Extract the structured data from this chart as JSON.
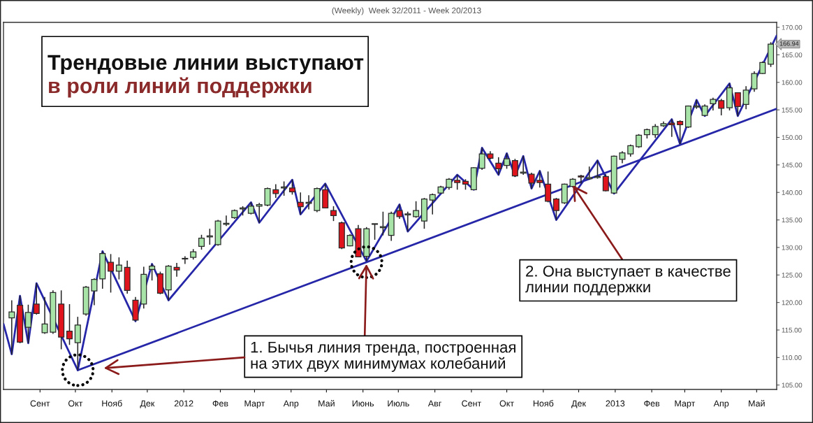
{
  "chart_data": {
    "type": "candlestick",
    "title": "(Weekly)  Week 32/2011 - Week 20/2013",
    "x": [
      "2011-08-08",
      "2011-08-15",
      "2011-08-22",
      "2011-08-29",
      "2011-09-05",
      "2011-09-12",
      "2011-09-19",
      "2011-09-26",
      "2011-10-03",
      "2011-10-10",
      "2011-10-17",
      "2011-10-24",
      "2011-10-31",
      "2011-11-07",
      "2011-11-14",
      "2011-11-21",
      "2011-11-28",
      "2011-12-05",
      "2011-12-12",
      "2011-12-19",
      "2011-12-26",
      "2012-01-02",
      "2012-01-09",
      "2012-01-16",
      "2012-01-23",
      "2012-01-30",
      "2012-02-06",
      "2012-02-13",
      "2012-02-20",
      "2012-02-27",
      "2012-03-05",
      "2012-03-12",
      "2012-03-19",
      "2012-03-26",
      "2012-04-02",
      "2012-04-09",
      "2012-04-16",
      "2012-04-23",
      "2012-04-30",
      "2012-05-07",
      "2012-05-14",
      "2012-05-21",
      "2012-05-28",
      "2012-06-04",
      "2012-06-11",
      "2012-06-18",
      "2012-06-25",
      "2012-07-02",
      "2012-07-09",
      "2012-07-16",
      "2012-07-23",
      "2012-07-30",
      "2012-08-06",
      "2012-08-13",
      "2012-08-20",
      "2012-08-27",
      "2012-09-03",
      "2012-09-10",
      "2012-09-17",
      "2012-09-24",
      "2012-10-01",
      "2012-10-08",
      "2012-10-15",
      "2012-10-22",
      "2012-10-29",
      "2012-11-05",
      "2012-11-12",
      "2012-11-19",
      "2012-11-26",
      "2012-12-03",
      "2012-12-10",
      "2012-12-17",
      "2012-12-24",
      "2012-12-31",
      "2013-01-07",
      "2013-01-14",
      "2013-01-21",
      "2013-01-28",
      "2013-02-04",
      "2013-02-11",
      "2013-02-18",
      "2013-02-25",
      "2013-03-04",
      "2013-03-11",
      "2013-03-18",
      "2013-03-25",
      "2013-04-01",
      "2013-04-08",
      "2013-04-15",
      "2013-04-22",
      "2013-04-29",
      "2013-05-06",
      "2013-05-13"
    ],
    "ohlc": [
      [
        117.2,
        120.4,
        110.6,
        118.3
      ],
      [
        119.5,
        121.2,
        112.6,
        112.8
      ],
      [
        115.5,
        119.6,
        112.6,
        118.2
      ],
      [
        119.7,
        123.5,
        117.8,
        118.0
      ],
      [
        114.5,
        121.0,
        114.3,
        116.1
      ],
      [
        114.6,
        122.2,
        114.3,
        121.8
      ],
      [
        119.7,
        122.2,
        111.5,
        113.7
      ],
      [
        114.8,
        119.7,
        112.3,
        113.4
      ],
      [
        112.7,
        117.4,
        107.7,
        115.9
      ],
      [
        117.9,
        123.0,
        117.6,
        122.8
      ],
      [
        122.1,
        124.4,
        119.5,
        124.2
      ],
      [
        124.3,
        129.3,
        122.5,
        128.9
      ],
      [
        127.3,
        128.8,
        121.8,
        125.7
      ],
      [
        125.7,
        128.2,
        124.2,
        126.8
      ],
      [
        126.4,
        127.6,
        121.6,
        122.2
      ],
      [
        120.4,
        121.0,
        116.6,
        116.8
      ],
      [
        119.7,
        126.5,
        118.9,
        125.1
      ],
      [
        126.0,
        127.0,
        124.0,
        126.6
      ],
      [
        125.2,
        125.6,
        121.5,
        121.7
      ],
      [
        122.3,
        126.8,
        120.4,
        126.6
      ],
      [
        126.4,
        127.2,
        124.7,
        125.9
      ],
      [
        127.9,
        128.4,
        127.0,
        128.0
      ],
      [
        128.2,
        129.7,
        127.8,
        129.2
      ],
      [
        130.2,
        132.3,
        129.6,
        131.7
      ],
      [
        131.9,
        133.4,
        130.5,
        132.1
      ],
      [
        130.5,
        135.0,
        130.3,
        134.8
      ],
      [
        134.2,
        135.8,
        133.9,
        134.4
      ],
      [
        135.4,
        136.9,
        135.2,
        136.7
      ],
      [
        137.0,
        137.5,
        135.8,
        137.2
      ],
      [
        136.2,
        138.2,
        136.0,
        137.5
      ],
      [
        137.5,
        138.1,
        134.5,
        137.8
      ],
      [
        137.7,
        140.9,
        137.5,
        140.7
      ],
      [
        140.5,
        141.5,
        139.0,
        139.8
      ],
      [
        140.8,
        142.0,
        139.4,
        141.0
      ],
      [
        140.8,
        142.3,
        139.6,
        140.1
      ],
      [
        138.2,
        140.0,
        136.0,
        137.4
      ],
      [
        138.0,
        139.5,
        136.9,
        138.2
      ],
      [
        136.7,
        140.9,
        136.4,
        140.7
      ],
      [
        140.5,
        141.6,
        137.1,
        137.2
      ],
      [
        136.7,
        137.5,
        134.8,
        135.8
      ],
      [
        134.5,
        134.7,
        129.7,
        129.9
      ],
      [
        130.3,
        132.4,
        130.2,
        132.2
      ],
      [
        133.4,
        134.1,
        128.2,
        128.3
      ],
      [
        128.4,
        133.7,
        127.5,
        133.4
      ],
      [
        134.2,
        134.3,
        131.4,
        134.3
      ],
      [
        133.6,
        136.5,
        132.2,
        133.8
      ],
      [
        132.2,
        136.5,
        131.2,
        136.2
      ],
      [
        136.7,
        137.8,
        135.2,
        135.6
      ],
      [
        135.9,
        136.5,
        132.9,
        136.1
      ],
      [
        135.6,
        138.4,
        135.4,
        136.7
      ],
      [
        134.8,
        139.0,
        133.4,
        138.8
      ],
      [
        138.6,
        139.8,
        136.0,
        139.6
      ],
      [
        139.9,
        141.2,
        139.8,
        141.0
      ],
      [
        140.9,
        142.6,
        140.5,
        142.4
      ],
      [
        142.2,
        143.2,
        140.5,
        141.8
      ],
      [
        142.0,
        142.4,
        140.5,
        141.5
      ],
      [
        140.5,
        144.6,
        140.4,
        144.5
      ],
      [
        144.4,
        148.1,
        144.1,
        147.0
      ],
      [
        147.0,
        147.5,
        146.0,
        146.2
      ],
      [
        145.3,
        146.4,
        143.2,
        144.3
      ],
      [
        144.9,
        147.1,
        144.3,
        146.1
      ],
      [
        145.8,
        146.1,
        142.8,
        143.0
      ],
      [
        143.5,
        146.6,
        143.2,
        143.7
      ],
      [
        143.3,
        143.6,
        140.7,
        141.7
      ],
      [
        142.2,
        143.9,
        140.9,
        141.8
      ],
      [
        141.5,
        143.8,
        138.2,
        138.4
      ],
      [
        138.8,
        139.0,
        135.0,
        136.7
      ],
      [
        138.1,
        141.6,
        137.9,
        141.5
      ],
      [
        141.1,
        142.6,
        140.9,
        142.4
      ],
      [
        143.0,
        143.2,
        141.6,
        142.8
      ],
      [
        142.5,
        144.7,
        142.3,
        142.7
      ],
      [
        142.7,
        145.8,
        142.5,
        142.9
      ],
      [
        142.9,
        143.3,
        140.2,
        140.3
      ],
      [
        139.9,
        146.7,
        139.8,
        146.6
      ],
      [
        146.0,
        147.5,
        145.3,
        147.2
      ],
      [
        147.0,
        148.7,
        146.5,
        148.5
      ],
      [
        148.3,
        150.6,
        148.1,
        150.4
      ],
      [
        150.5,
        151.6,
        149.8,
        151.4
      ],
      [
        150.5,
        152.4,
        149.9,
        152.0
      ],
      [
        152.1,
        152.9,
        151.9,
        152.5
      ],
      [
        152.6,
        153.3,
        150.1,
        152.3
      ],
      [
        152.9,
        153.1,
        148.8,
        152.3
      ],
      [
        151.9,
        155.8,
        151.7,
        155.7
      ],
      [
        155.5,
        156.8,
        155.2,
        155.7
      ],
      [
        154.0,
        156.0,
        153.9,
        155.7
      ],
      [
        156.1,
        157.2,
        154.9,
        156.9
      ],
      [
        156.7,
        157.0,
        154.0,
        155.3
      ],
      [
        155.4,
        159.8,
        154.9,
        159.0
      ],
      [
        158.1,
        158.2,
        153.9,
        155.6
      ],
      [
        156.0,
        159.3,
        155.1,
        158.6
      ],
      [
        158.8,
        162.0,
        158.3,
        161.6
      ],
      [
        161.6,
        163.8,
        161.5,
        163.6
      ],
      [
        163.3,
        167.3,
        162.8,
        166.94
      ]
    ],
    "colors": [
      "#a8e4a8",
      "#e0141c",
      "#a8e4a8",
      "#e0141c",
      "#a8e4a8",
      "#a8e4a8",
      "#e0141c",
      "#e0141c",
      "#a8e4a8",
      "#a8e4a8",
      "#a8e4a8",
      "#a8e4a8",
      "#e0141c",
      "#a8e4a8",
      "#e0141c",
      "#e0141c",
      "#a8e4a8",
      "#a8e4a8",
      "#e0141c",
      "#a8e4a8",
      "#e0141c",
      "#a8e4a8",
      "#a8e4a8",
      "#a8e4a8",
      "#a8e4a8",
      "#a8e4a8",
      "#a8e4a8",
      "#a8e4a8",
      "#a8e4a8",
      "#a8e4a8",
      "#a8e4a8",
      "#a8e4a8",
      "#e0141c",
      "#a8e4a8",
      "#e0141c",
      "#e0141c",
      "#a8e4a8",
      "#a8e4a8",
      "#e0141c",
      "#e0141c",
      "#e0141c",
      "#a8e4a8",
      "#e0141c",
      "#a8e4a8",
      "#a8e4a8",
      "#a8e4a8",
      "#a8e4a8",
      "#e0141c",
      "#a8e4a8",
      "#a8e4a8",
      "#a8e4a8",
      "#a8e4a8",
      "#a8e4a8",
      "#a8e4a8",
      "#e0141c",
      "#e0141c",
      "#a8e4a8",
      "#a8e4a8",
      "#e0141c",
      "#e0141c",
      "#a8e4a8",
      "#e0141c",
      "#a8e4a8",
      "#e0141c",
      "#e0141c",
      "#e0141c",
      "#e0141c",
      "#a8e4a8",
      "#a8e4a8",
      "#e0141c",
      "#a8e4a8",
      "#a8e4a8",
      "#e0141c",
      "#a8e4a8",
      "#a8e4a8",
      "#a8e4a8",
      "#a8e4a8",
      "#a8e4a8",
      "#a8e4a8",
      "#a8e4a8",
      "#e0141c",
      "#e0141c",
      "#a8e4a8",
      "#a8e4a8",
      "#a8e4a8",
      "#a8e4a8",
      "#e0141c",
      "#a8e4a8",
      "#e0141c",
      "#a8e4a8",
      "#a8e4a8",
      "#a8e4a8",
      "#a8e4a8"
    ],
    "series": [
      {
        "type": "line",
        "color": "#2626a8",
        "x": [
          "2011-08-01",
          "2011-08-08",
          "2011-08-15",
          "2011-08-22",
          "2011-08-29",
          "2011-10-03",
          "2011-10-24",
          "2011-11-21",
          "2011-12-05",
          "2011-12-19",
          "2012-02-27",
          "2012-03-05",
          "2012-04-02",
          "2012-04-09",
          "2012-04-30",
          "2012-06-04",
          "2012-07-02",
          "2012-07-09",
          "2012-08-20",
          "2012-09-03",
          "2012-09-10",
          "2012-09-24",
          "2012-10-01",
          "2012-10-08",
          "2012-10-15",
          "2012-10-22",
          "2012-10-29",
          "2012-11-12",
          "2012-12-17",
          "2012-12-31",
          "2013-02-18",
          "2013-02-25",
          "2013-03-11",
          "2013-03-18",
          "2013-04-08",
          "2013-04-15",
          "2013-05-18"
        ],
        "values": [
          116.1,
          110.6,
          121.2,
          112.6,
          123.5,
          107.7,
          129.3,
          116.6,
          127.0,
          120.4,
          138.2,
          134.5,
          142.3,
          136.0,
          141.6,
          127.5,
          137.8,
          132.9,
          143.2,
          140.5,
          148.1,
          143.2,
          147.1,
          143.0,
          146.6,
          140.7,
          143.9,
          135.0,
          145.8,
          139.8,
          153.3,
          148.8,
          156.8,
          153.9,
          159.8,
          153.9,
          168.5
        ]
      },
      {
        "type": "line",
        "color": "#2626a8",
        "x": [
          "2011-10-03",
          "2013-05-18"
        ],
        "values": [
          107.7,
          155.2
        ]
      }
    ],
    "xlim": [
      "2011-08-01",
      "2013-05-18"
    ],
    "xticks": [
      {
        "value": "2011-09-01",
        "label": "Сент"
      },
      {
        "value": "2011-10-01",
        "label": "Окт"
      },
      {
        "value": "2011-11-01",
        "label": "Нояб"
      },
      {
        "value": "2011-12-01",
        "label": "Дек"
      },
      {
        "value": "2012-01-01",
        "label": "2012"
      },
      {
        "value": "2012-02-01",
        "label": "Фев"
      },
      {
        "value": "2012-03-01",
        "label": "Март"
      },
      {
        "value": "2012-04-01",
        "label": "Апр"
      },
      {
        "value": "2012-05-01",
        "label": "Май"
      },
      {
        "value": "2012-06-01",
        "label": "Июнь"
      },
      {
        "value": "2012-07-01",
        "label": "Июль"
      },
      {
        "value": "2012-08-01",
        "label": "Авг"
      },
      {
        "value": "2012-09-01",
        "label": "Сент"
      },
      {
        "value": "2012-10-01",
        "label": "Окт"
      },
      {
        "value": "2012-11-01",
        "label": "Нояб"
      },
      {
        "value": "2012-12-01",
        "label": "Дек"
      },
      {
        "value": "2013-01-01",
        "label": "2013"
      },
      {
        "value": "2013-02-01",
        "label": "Фев"
      },
      {
        "value": "2013-03-01",
        "label": "Март"
      },
      {
        "value": "2013-04-01",
        "label": "Апр"
      },
      {
        "value": "2013-05-01",
        "label": "Май"
      }
    ],
    "ylim": [
      104.2,
      170.9
    ],
    "yticks": [
      {
        "value": 105,
        "label": "105.00"
      },
      {
        "value": 110,
        "label": "110.00"
      },
      {
        "value": 115,
        "label": "115.00"
      },
      {
        "value": 120,
        "label": "120.00"
      },
      {
        "value": 125,
        "label": "125.00"
      },
      {
        "value": 130,
        "label": "130.00"
      },
      {
        "value": 135,
        "label": "135.00"
      },
      {
        "value": 140,
        "label": "140.00"
      },
      {
        "value": 145,
        "label": "145.00"
      },
      {
        "value": 150,
        "label": "150.00"
      },
      {
        "value": 155,
        "label": "155.00"
      },
      {
        "value": 160,
        "label": "160.00"
      },
      {
        "value": 165,
        "label": "165.00"
      },
      {
        "value": 170,
        "label": "170.00"
      }
    ],
    "annotations": [
      "Трендовые линии выступают",
      "в роли линий поддержки",
      {
        "text": "1. Бычья линия тренда, построенная\nна этих двух минимумах колебаний",
        "x": "2012-06-04",
        "y": 127.5
      },
      {
        "text": "2. Она выступает в качестве\nлинии поддержки",
        "x": "2012-11-26",
        "y": 141.3
      },
      {
        "text": "166.94",
        "x": "2013-05-13",
        "y": 166.94
      }
    ]
  }
}
